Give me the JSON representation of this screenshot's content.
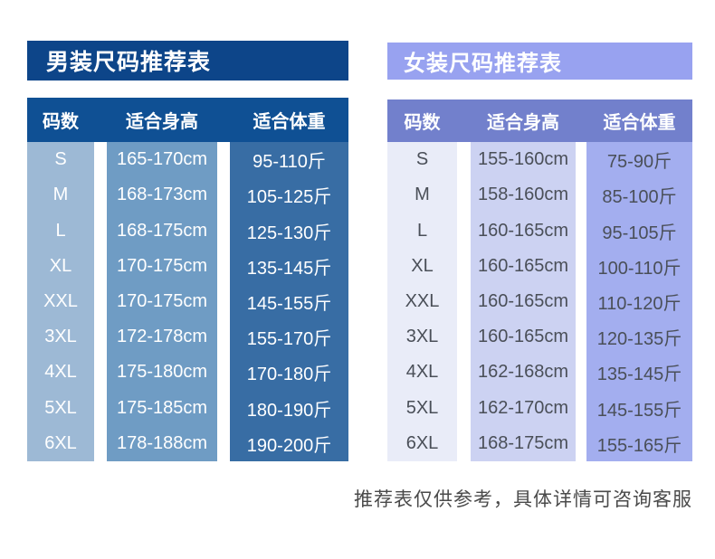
{
  "colors": {
    "page_bg": "#ffffff",
    "men": {
      "title_bg": "#0d4589",
      "header_bg": "#0f5094",
      "col1_bg": "#9db9d5",
      "col2_bg": "#6f9cc4",
      "col3_bg": "#386da4",
      "cell_text": "#ffffff"
    },
    "women": {
      "title_bg": "#98a2f0",
      "header_bg": "#7280cc",
      "col1_bg": "#e9ecf8",
      "col2_bg": "#ccd2f2",
      "col3_bg": "#a3aeef",
      "cell_text": "#4a4f58"
    },
    "note_text": "#4a4a4a"
  },
  "men_table": {
    "title": "男装尺码推荐表",
    "columns": [
      "码数",
      "适合身高",
      "适合体重"
    ],
    "rows": [
      [
        "S",
        "165-170cm",
        "95-110斤"
      ],
      [
        "M",
        "168-173cm",
        "105-125斤"
      ],
      [
        "L",
        "168-175cm",
        "125-130斤"
      ],
      [
        "XL",
        "170-175cm",
        "135-145斤"
      ],
      [
        "XXL",
        "170-175cm",
        "145-155斤"
      ],
      [
        "3XL",
        "172-178cm",
        "155-170斤"
      ],
      [
        "4XL",
        "175-180cm",
        "170-180斤"
      ],
      [
        "5XL",
        "175-185cm",
        "180-190斤"
      ],
      [
        "6XL",
        "178-188cm",
        "190-200斤"
      ]
    ]
  },
  "women_table": {
    "title": "女装尺码推荐表",
    "columns": [
      "码数",
      "适合身高",
      "适合体重"
    ],
    "rows": [
      [
        "S",
        "155-160cm",
        "75-90斤"
      ],
      [
        "M",
        "158-160cm",
        "85-100斤"
      ],
      [
        "L",
        "160-165cm",
        "95-105斤"
      ],
      [
        "XL",
        "160-165cm",
        "100-110斤"
      ],
      [
        "XXL",
        "160-165cm",
        "110-120斤"
      ],
      [
        "3XL",
        "160-165cm",
        "120-135斤"
      ],
      [
        "4XL",
        "162-168cm",
        "135-145斤"
      ],
      [
        "5XL",
        "162-170cm",
        "145-155斤"
      ],
      [
        "6XL",
        "168-175cm",
        "155-165斤"
      ]
    ]
  },
  "note": "推荐表仅供参考，具体详情可咨询客服"
}
